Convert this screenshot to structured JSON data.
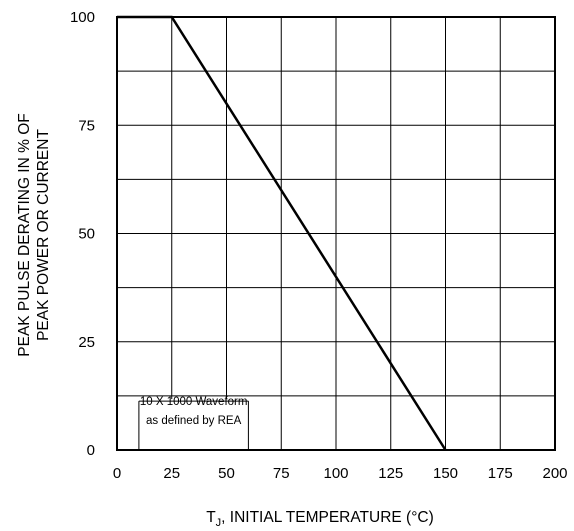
{
  "chart_data": {
    "type": "line",
    "title": "",
    "xlabel_main": "T",
    "xlabel_sub": "J",
    "xlabel_rest": ", INITIAL TEMPERATURE (°C)",
    "ylabel_line1": "PEAK PULSE DERATING IN % OF",
    "ylabel_line2": "PEAK POWER OR CURRENT",
    "xlim": [
      0,
      200
    ],
    "ylim": [
      0,
      100
    ],
    "xticks": [
      "0",
      "25",
      "50",
      "75",
      "100",
      "125",
      "150",
      "175",
      "200"
    ],
    "yticks": [
      "0",
      "25",
      "50",
      "75",
      "100"
    ],
    "xtick_values": [
      0,
      25,
      50,
      75,
      100,
      125,
      150,
      175,
      200
    ],
    "ytick_values": [
      0,
      25,
      50,
      75,
      100
    ],
    "grid": true,
    "series": [
      {
        "x": [
          0,
          25,
          150
        ],
        "y": [
          100,
          100,
          0
        ]
      }
    ],
    "annotation": {
      "line1": "10 X 1000 Waveform",
      "line2": "as defined by REA"
    }
  }
}
